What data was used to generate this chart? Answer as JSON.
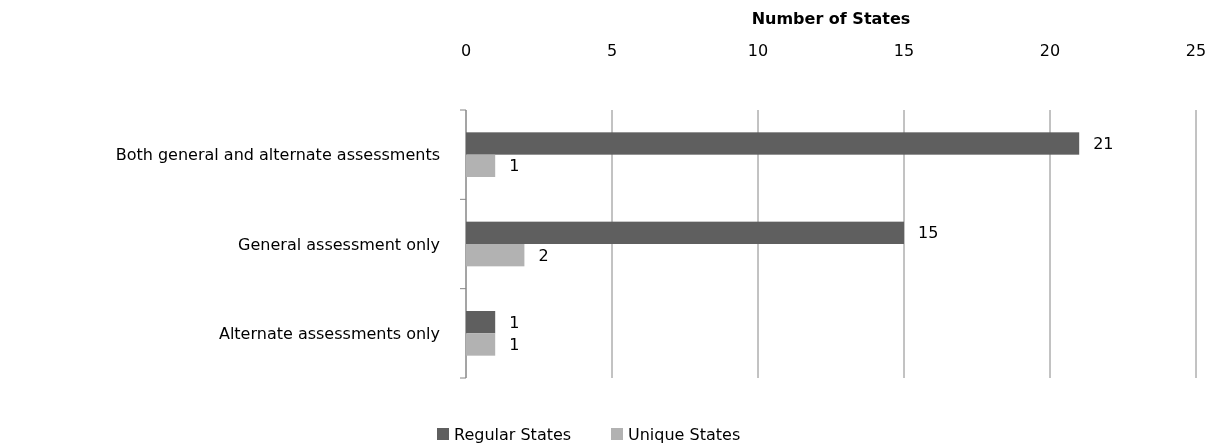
{
  "chart_data": {
    "type": "bar",
    "orientation": "horizontal",
    "xlabel": "Number of States",
    "categories": [
      "Both general and alternate assessments",
      "General assessment only",
      "Alternate assessments only"
    ],
    "series": [
      {
        "name": "Regular States",
        "color": "#5f5f5f",
        "values": [
          21,
          15,
          1
        ]
      },
      {
        "name": "Unique States",
        "color": "#b2b2b2",
        "values": [
          1,
          2,
          1
        ]
      }
    ],
    "xlim": [
      0,
      25
    ],
    "xticks": [
      0,
      5,
      10,
      15,
      20,
      25
    ],
    "grid": "x",
    "legend": "bottom",
    "data_labels": true
  }
}
